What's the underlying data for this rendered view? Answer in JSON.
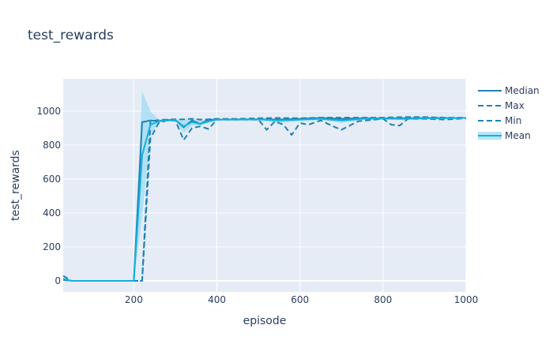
{
  "chart_data": {
    "type": "line",
    "title": "test_rewards",
    "xlabel": "episode",
    "ylabel": "test_rewards",
    "xlim": [
      30,
      1000
    ],
    "ylim": [
      -65,
      1190
    ],
    "xticks": [
      200,
      400,
      600,
      800,
      1000
    ],
    "yticks": [
      0,
      200,
      400,
      600,
      800,
      1000
    ],
    "grid": true,
    "legend_position": "right",
    "colors": {
      "plot_bg": "#e5ecf6",
      "grid": "#ffffff",
      "text": "#2a3f5f",
      "line": "#1f83b4",
      "mean": "#17b0dc",
      "band": "#9fdcf3"
    },
    "series": [
      {
        "name": "Median",
        "style": "solid",
        "x": [
          30,
          50,
          100,
          150,
          200,
          220,
          240,
          260,
          280,
          300,
          320,
          340,
          360,
          380,
          400,
          450,
          500,
          550,
          600,
          650,
          700,
          750,
          800,
          850,
          900,
          950,
          1000
        ],
        "y": [
          10,
          0,
          0,
          0,
          0,
          935,
          945,
          942,
          948,
          948,
          905,
          945,
          925,
          950,
          950,
          952,
          952,
          950,
          955,
          960,
          955,
          958,
          958,
          958,
          960,
          960,
          960
        ]
      },
      {
        "name": "Max",
        "style": "dashed",
        "x": [
          30,
          50,
          100,
          150,
          200,
          220,
          240,
          260,
          280,
          300,
          320,
          340,
          360,
          380,
          400,
          450,
          500,
          550,
          600,
          650,
          700,
          750,
          800,
          850,
          900,
          950,
          1000
        ],
        "y": [
          30,
          0,
          0,
          0,
          0,
          0,
          940,
          948,
          950,
          952,
          952,
          955,
          950,
          952,
          955,
          955,
          958,
          960,
          958,
          962,
          962,
          962,
          962,
          965,
          965,
          962,
          962
        ]
      },
      {
        "name": "Min",
        "style": "dashed",
        "x": [
          30,
          50,
          100,
          150,
          200,
          220,
          240,
          260,
          280,
          300,
          320,
          340,
          360,
          380,
          400,
          450,
          500,
          520,
          540,
          560,
          580,
          600,
          620,
          650,
          680,
          700,
          740,
          780,
          800,
          820,
          840,
          860,
          900,
          950,
          1000
        ],
        "y": [
          5,
          0,
          0,
          0,
          0,
          0,
          840,
          930,
          945,
          945,
          830,
          900,
          910,
          895,
          950,
          950,
          950,
          890,
          940,
          920,
          860,
          930,
          920,
          945,
          910,
          890,
          940,
          950,
          955,
          920,
          915,
          955,
          955,
          950,
          958
        ]
      },
      {
        "name": "Mean",
        "style": "solid",
        "x": [
          30,
          50,
          100,
          150,
          200,
          220,
          240,
          260,
          280,
          300,
          320,
          340,
          360,
          380,
          400,
          450,
          500,
          550,
          600,
          650,
          700,
          750,
          800,
          850,
          900,
          950,
          1000
        ],
        "y": [
          12,
          0,
          0,
          0,
          0,
          740,
          920,
          940,
          945,
          948,
          910,
          935,
          925,
          940,
          950,
          950,
          952,
          945,
          950,
          955,
          945,
          955,
          956,
          955,
          958,
          958,
          960
        ],
        "band_upper": [
          20,
          0,
          0,
          0,
          0,
          1120,
          1000,
          950,
          952,
          952,
          950,
          955,
          950,
          952,
          955,
          955,
          958,
          960,
          958,
          962,
          962,
          962,
          962,
          965,
          965,
          962,
          962
        ],
        "band_lower": [
          5,
          0,
          0,
          0,
          0,
          380,
          860,
          935,
          942,
          945,
          870,
          915,
          915,
          930,
          945,
          945,
          945,
          930,
          940,
          948,
          930,
          948,
          950,
          948,
          952,
          955,
          958
        ]
      }
    ]
  }
}
